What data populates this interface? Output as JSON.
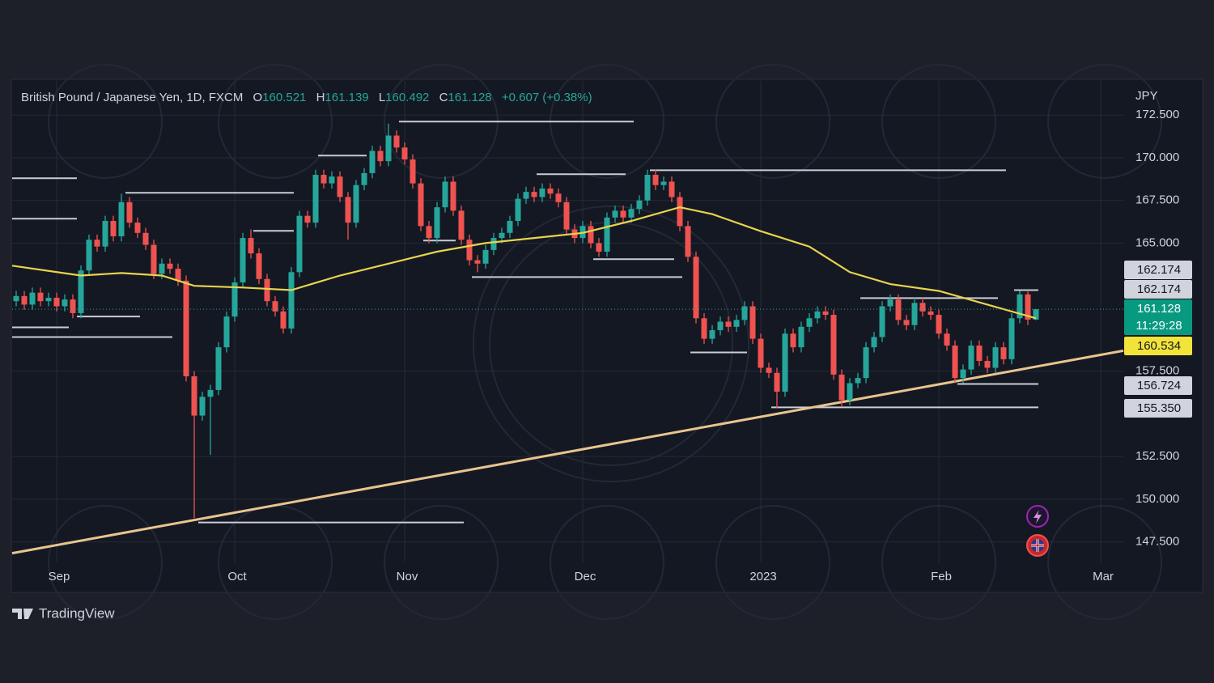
{
  "chart_data": {
    "type": "candlestick",
    "title": "British Pound / Japanese Yen, 1D, FXCM",
    "legend": [
      {
        "label": "O",
        "value": 160.521
      },
      {
        "label": "H",
        "value": 161.139
      },
      {
        "label": "L",
        "value": 160.492
      },
      {
        "label": "C",
        "value": 161.128
      }
    ],
    "change": "+0.607 (+0.38%)",
    "currency": "JPY",
    "brand": "TradingView",
    "up_color": "#26a69a",
    "down_color": "#ef5350",
    "open": [
      161.6,
      161.9,
      161.4,
      162.1,
      161.6,
      161.8,
      161.3,
      161.7,
      160.9,
      163.4,
      165.2,
      164.8,
      166.3,
      165.4,
      167.4,
      166.2,
      165.6,
      164.9,
      163.2,
      163.8,
      163.5,
      162.8,
      157.2,
      154.9,
      156.0,
      156.4,
      158.9,
      160.7,
      162.7,
      165.3,
      164.4,
      162.9,
      161.6,
      161.0,
      160.0,
      163.3,
      166.6,
      166.2,
      169.0,
      168.5,
      168.9,
      167.7,
      166.2,
      168.4,
      169.1,
      170.4,
      169.8,
      171.3,
      170.6,
      169.9,
      168.5,
      166.0,
      165.3,
      167.1,
      168.6,
      166.9,
      165.2,
      164.0,
      163.8,
      164.6,
      165.3,
      165.6,
      166.3,
      167.6,
      168.0,
      167.7,
      168.2,
      167.9,
      167.4,
      165.8,
      165.3,
      166.0,
      165.0,
      164.5,
      166.5,
      166.9,
      166.5,
      167.0,
      167.5,
      169.0,
      168.4,
      168.6,
      167.7,
      166.0,
      164.2,
      160.6,
      159.4,
      159.9,
      160.4,
      160.1,
      160.5,
      161.3,
      159.4,
      157.7,
      157.4,
      156.3,
      159.7,
      158.9,
      160.1,
      160.6,
      161.0,
      160.8,
      157.3,
      155.8,
      156.8,
      157.1,
      158.9,
      159.5,
      161.3,
      161.7,
      160.5,
      160.2,
      161.5,
      161.0,
      160.8,
      159.7,
      159.0,
      157.1,
      157.6,
      159.0,
      158.1,
      157.7,
      158.9,
      158.2,
      160.6,
      162.0,
      160.521
    ],
    "high": [
      162.2,
      162.2,
      162.4,
      162.4,
      162.1,
      162.1,
      162.0,
      162.0,
      163.7,
      165.5,
      165.5,
      166.6,
      166.6,
      167.9,
      167.7,
      166.5,
      165.9,
      165.2,
      164.1,
      164.1,
      163.8,
      163.1,
      157.5,
      156.3,
      156.7,
      159.2,
      161.0,
      163.0,
      165.6,
      165.8,
      164.7,
      163.2,
      161.9,
      161.3,
      163.6,
      166.9,
      166.9,
      169.3,
      169.3,
      169.2,
      169.2,
      168.0,
      168.7,
      169.4,
      170.7,
      170.7,
      172.0,
      171.6,
      170.9,
      170.2,
      168.8,
      166.3,
      167.4,
      168.9,
      168.9,
      167.2,
      165.5,
      164.3,
      164.9,
      165.6,
      165.9,
      166.6,
      167.9,
      168.3,
      168.3,
      168.5,
      168.5,
      168.2,
      167.7,
      166.1,
      166.3,
      166.3,
      165.3,
      166.8,
      167.2,
      167.2,
      167.3,
      167.8,
      169.3,
      169.3,
      168.9,
      168.9,
      168.0,
      166.3,
      164.5,
      160.9,
      160.2,
      160.7,
      160.7,
      160.8,
      161.6,
      161.6,
      159.7,
      158.0,
      157.7,
      160.0,
      160.0,
      160.4,
      160.9,
      161.3,
      161.3,
      161.1,
      157.6,
      157.1,
      157.4,
      159.2,
      159.8,
      161.6,
      162.0,
      162.0,
      160.8,
      161.8,
      161.8,
      161.3,
      161.1,
      160.0,
      159.3,
      157.9,
      159.3,
      159.3,
      158.4,
      159.2,
      159.2,
      160.9,
      162.2,
      162.17,
      161.139
    ],
    "low": [
      161.3,
      161.1,
      161.1,
      161.3,
      161.3,
      161.0,
      161.0,
      160.6,
      160.6,
      163.1,
      164.5,
      164.5,
      165.1,
      165.1,
      165.9,
      165.3,
      164.6,
      162.9,
      162.9,
      163.2,
      162.5,
      156.9,
      148.9,
      154.6,
      152.6,
      156.1,
      158.6,
      160.4,
      162.4,
      164.1,
      162.6,
      161.3,
      160.7,
      159.7,
      159.7,
      163.0,
      165.9,
      165.9,
      168.2,
      168.2,
      167.4,
      165.2,
      165.9,
      168.1,
      168.8,
      169.5,
      169.5,
      170.3,
      169.6,
      168.2,
      165.7,
      165.0,
      165.0,
      166.8,
      166.6,
      164.9,
      163.7,
      163.3,
      163.5,
      164.3,
      165.0,
      165.3,
      166.0,
      167.3,
      167.4,
      167.4,
      167.6,
      167.1,
      165.5,
      165.0,
      165.0,
      164.7,
      164.2,
      164.2,
      166.2,
      166.2,
      166.2,
      166.7,
      167.2,
      168.1,
      168.1,
      167.4,
      165.7,
      163.9,
      160.3,
      159.1,
      159.1,
      159.6,
      159.8,
      159.8,
      160.2,
      159.1,
      157.4,
      157.1,
      155.35,
      156.0,
      158.6,
      158.6,
      159.8,
      160.3,
      160.5,
      157.0,
      155.4,
      155.5,
      156.5,
      156.8,
      158.6,
      159.2,
      161.0,
      160.2,
      159.9,
      159.9,
      160.7,
      160.5,
      159.4,
      158.7,
      156.8,
      156.8,
      157.3,
      157.8,
      157.4,
      157.4,
      157.9,
      157.9,
      160.3,
      160.2,
      160.492
    ],
    "close": [
      161.9,
      161.4,
      162.1,
      161.6,
      161.8,
      161.3,
      161.7,
      160.9,
      163.4,
      165.2,
      164.8,
      166.3,
      165.4,
      167.4,
      166.2,
      165.6,
      164.9,
      163.2,
      163.8,
      163.5,
      162.8,
      157.2,
      154.9,
      156.0,
      156.4,
      158.9,
      160.7,
      162.7,
      165.3,
      164.4,
      162.9,
      161.6,
      161.0,
      160.0,
      163.3,
      166.6,
      166.2,
      169.0,
      168.5,
      168.9,
      167.7,
      166.2,
      168.4,
      169.1,
      170.4,
      169.8,
      171.3,
      170.6,
      169.9,
      168.5,
      166.0,
      165.3,
      167.1,
      168.6,
      166.9,
      165.2,
      164.0,
      163.8,
      164.6,
      165.3,
      165.6,
      166.3,
      167.6,
      168.0,
      167.7,
      168.2,
      167.9,
      167.4,
      165.8,
      165.3,
      166.0,
      165.0,
      164.5,
      166.5,
      166.9,
      166.5,
      167.0,
      167.5,
      169.0,
      168.4,
      168.6,
      167.7,
      166.0,
      164.2,
      160.6,
      159.4,
      159.9,
      160.4,
      160.1,
      160.5,
      161.3,
      159.4,
      157.7,
      157.4,
      156.3,
      159.7,
      158.9,
      160.1,
      160.6,
      161.0,
      160.8,
      157.3,
      155.8,
      156.8,
      157.1,
      158.9,
      159.5,
      161.3,
      161.7,
      160.5,
      160.2,
      161.5,
      161.0,
      160.8,
      159.7,
      159.0,
      157.1,
      157.6,
      159.0,
      158.1,
      157.7,
      158.9,
      158.2,
      160.6,
      162.0,
      160.52,
      161.128
    ],
    "xlim": [
      -0.5,
      136.8
    ],
    "xticks": [
      {
        "value": 5,
        "label": "Sep"
      },
      {
        "value": 27,
        "label": "Oct"
      },
      {
        "value": 48,
        "label": "Nov"
      },
      {
        "value": 70,
        "label": "Dec"
      },
      {
        "value": 92,
        "label": "2023"
      },
      {
        "value": 114,
        "label": "Feb"
      },
      {
        "value": 134,
        "label": "Mar"
      }
    ],
    "ylim": [
      146.3,
      174.5
    ],
    "yticks": [
      {
        "value": 147.5,
        "label": "147.500"
      },
      {
        "value": 150,
        "label": "150.000"
      },
      {
        "value": 152.5,
        "label": "152.500"
      },
      {
        "value": 157.5,
        "label": "157.500"
      },
      {
        "value": 165,
        "label": "165.000"
      },
      {
        "value": 167.5,
        "label": "167.500"
      },
      {
        "value": 170,
        "label": "170.000"
      },
      {
        "value": 172.5,
        "label": "172.500"
      }
    ],
    "grid": true,
    "moving_average": {
      "color": "#e8d44d",
      "x": [
        -0.5,
        8,
        13,
        18,
        22,
        28,
        34,
        40,
        46,
        52,
        58,
        64,
        70,
        76,
        82,
        86,
        92,
        98,
        103,
        108,
        114,
        120,
        126
      ],
      "values": [
        163.68,
        163.1,
        163.25,
        163.1,
        162.5,
        162.4,
        162.25,
        163.1,
        163.8,
        164.5,
        165.0,
        165.3,
        165.6,
        166.3,
        167.1,
        166.7,
        165.7,
        164.8,
        163.3,
        162.6,
        162.2,
        161.4,
        160.6
      ]
    },
    "trendline": {
      "color": "#e9c48f",
      "x": [
        -0.5,
        136.8
      ],
      "values": [
        146.84,
        158.7
      ]
    },
    "levels": [
      {
        "x": [
          47.3,
          76.3
        ],
        "value": 172.12
      },
      {
        "x": [
          78.3,
          122.3
        ],
        "value": 169.27
      },
      {
        "x": [
          13.5,
          34.3
        ],
        "value": 167.95
      },
      {
        "x": [
          22.5,
          55.3
        ],
        "value": 148.64
      },
      {
        "x": [
          93.3,
          126.3
        ],
        "value": 155.38
      },
      {
        "x": [
          116.3,
          126.3
        ],
        "value": 156.75
      },
      {
        "x": [
          123.3,
          126.3
        ],
        "value": 162.25
      },
      {
        "x": [
          -0.5,
          7.5
        ],
        "value": 168.8
      },
      {
        "x": [
          -0.5,
          7.5
        ],
        "value": 166.43
      },
      {
        "x": [
          -0.5,
          6.5
        ],
        "value": 160.07
      },
      {
        "x": [
          -0.5,
          19.3
        ],
        "value": 159.5
      },
      {
        "x": [
          83.3,
          90.3
        ],
        "value": 158.6
      },
      {
        "x": [
          56.3,
          82.3
        ],
        "value": 163.01
      },
      {
        "x": [
          71.3,
          81.3
        ],
        "value": 164.06
      },
      {
        "x": [
          64.3,
          75.3
        ],
        "value": 169.04
      },
      {
        "x": [
          37.3,
          43.3
        ],
        "value": 170.13
      },
      {
        "x": [
          29.3,
          34.3
        ],
        "value": 165.72
      },
      {
        "x": [
          50.3,
          54.3
        ],
        "value": 165.15
      },
      {
        "x": [
          104.3,
          121.3
        ],
        "value": 161.78
      },
      {
        "x": [
          7.5,
          15.3
        ],
        "value": 160.7
      }
    ],
    "price_labels": [
      {
        "value": 162.174,
        "color": "#d1d4dc"
      },
      {
        "value": 162.174,
        "color": "#d1d4dc"
      },
      {
        "value": 161.128,
        "color": "#089981"
      },
      {
        "value": 160.534,
        "color": "#f2e33a"
      },
      {
        "value": 156.724,
        "color": "#d1d4dc"
      },
      {
        "value": {
          "value": 155.35,
          "label": "155.350"
        },
        "color": "#d1d4dc"
      }
    ],
    "countdown": "11:29:28"
  }
}
